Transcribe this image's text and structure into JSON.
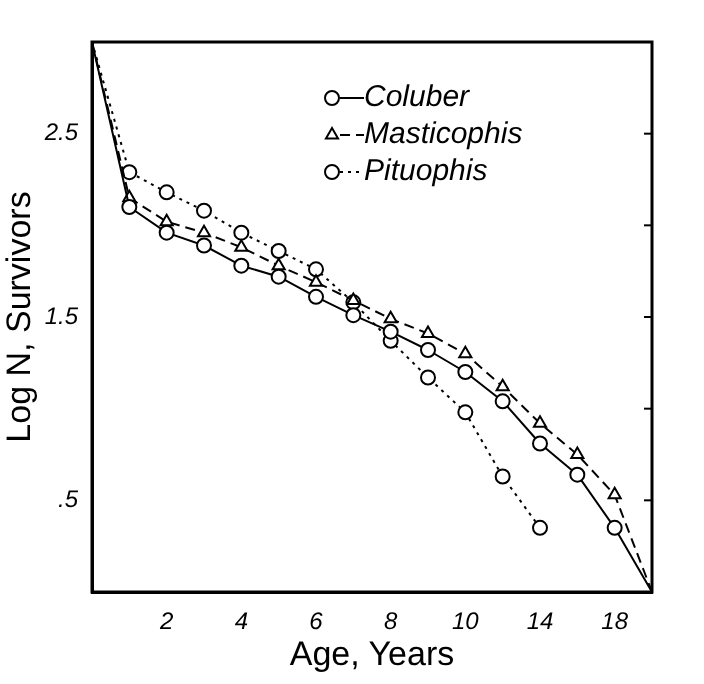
{
  "chart_data": {
    "type": "line",
    "xlabel": "Age, Years",
    "ylabel": "Log N, Survivors",
    "categories": [
      null,
      null,
      "2",
      null,
      "4",
      null,
      "6",
      null,
      "8",
      null,
      "10",
      null,
      "14",
      null,
      "18",
      null
    ],
    "ylim": [
      0,
      3
    ],
    "yticks": [
      {
        "value": 0.5,
        "label": ".5"
      },
      {
        "value": 1,
        "label": null
      },
      1.5,
      {
        "value": 2,
        "label": null
      },
      2.5
    ],
    "grid": false,
    "legend": "top right",
    "series": [
      {
        "name": "Coluber",
        "color": "#000000",
        "marker": "circle",
        "line_style": "solid",
        "values": [
          3,
          2.1,
          1.96,
          1.89,
          1.78,
          1.72,
          1.61,
          1.51,
          1.42,
          1.32,
          1.2,
          1.04,
          0.81,
          0.64,
          0.35,
          0
        ]
      },
      {
        "name": "Masticophis",
        "color": "#000000",
        "marker": "triangle",
        "line_style": "dashed",
        "values": [
          3,
          2.15,
          2.02,
          1.96,
          1.88,
          1.78,
          1.69,
          1.59,
          1.49,
          1.41,
          1.3,
          1.12,
          0.92,
          0.75,
          0.53,
          0
        ]
      },
      {
        "name": "Pituophis",
        "color": "#000000",
        "marker": "circle",
        "line_style": "dotted",
        "values": [
          3,
          2.29,
          2.18,
          2.08,
          1.96,
          1.86,
          1.76,
          1.58,
          1.37,
          1.17,
          0.98,
          0.63,
          0.35,
          null,
          null,
          null
        ]
      }
    ]
  }
}
